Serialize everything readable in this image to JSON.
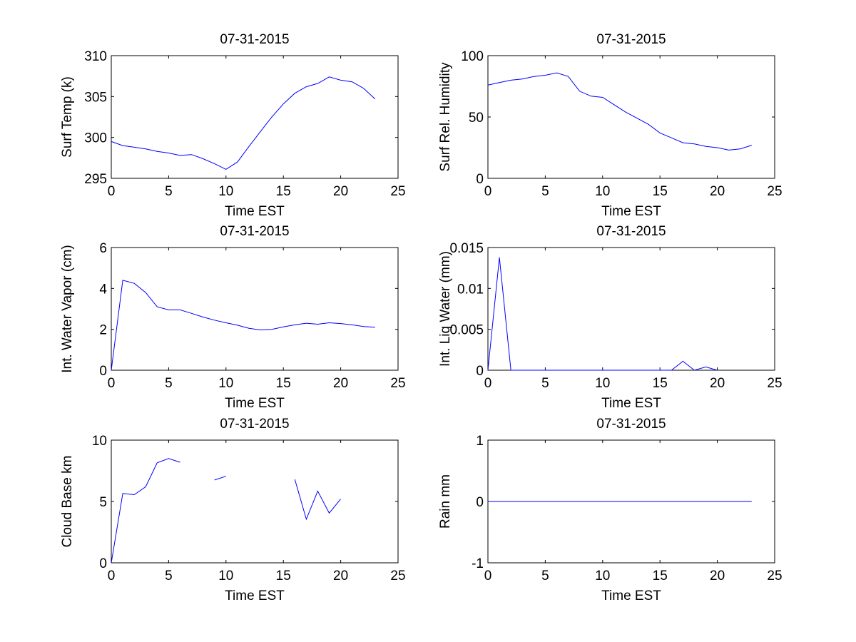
{
  "colors": {
    "line": "#0000ff",
    "axis": "#000000",
    "background": "#ffffff"
  },
  "chart_data": [
    {
      "type": "line",
      "title": "07-31-2015",
      "xlabel": "Time EST",
      "ylabel": "Surf Temp (k)",
      "xlim": [
        0,
        25
      ],
      "ylim": [
        295,
        310
      ],
      "xticks": [
        0,
        5,
        10,
        15,
        20,
        25
      ],
      "yticks": [
        295,
        300,
        305,
        310
      ],
      "yticklabels": [
        "295",
        "300",
        "305",
        "310"
      ],
      "x": [
        0,
        1,
        2,
        3,
        4,
        5,
        6,
        7,
        8,
        9,
        10,
        11,
        12,
        13,
        14,
        15,
        16,
        17,
        18,
        19,
        20,
        21,
        22,
        23
      ],
      "series": [
        {
          "name": "Surf Temp",
          "values": [
            299.5,
            299.0,
            298.8,
            298.6,
            298.3,
            298.1,
            297.8,
            297.9,
            297.4,
            296.8,
            296.1,
            297.0,
            298.9,
            300.7,
            302.5,
            304.1,
            305.4,
            306.2,
            306.6,
            307.4,
            307.0,
            306.8,
            306.0,
            304.7
          ]
        }
      ]
    },
    {
      "type": "line",
      "title": "07-31-2015",
      "xlabel": "Time EST",
      "ylabel": "Surf Rel. Humidity",
      "xlim": [
        0,
        25
      ],
      "ylim": [
        0,
        100
      ],
      "xticks": [
        0,
        5,
        10,
        15,
        20,
        25
      ],
      "yticks": [
        0,
        50,
        100
      ],
      "yticklabels": [
        "0",
        "50",
        "100"
      ],
      "x": [
        0,
        1,
        2,
        3,
        4,
        5,
        6,
        7,
        8,
        9,
        10,
        11,
        12,
        13,
        14,
        15,
        16,
        17,
        18,
        19,
        20,
        21,
        22,
        23
      ],
      "series": [
        {
          "name": "Surf Rel. Humidity",
          "values": [
            76,
            78,
            80,
            81,
            83,
            84,
            86,
            83,
            71,
            67,
            66,
            60,
            54,
            49,
            44,
            37,
            33,
            29,
            28,
            26,
            25,
            23,
            24,
            27
          ]
        }
      ]
    },
    {
      "type": "line",
      "title": "07-31-2015",
      "xlabel": "Time EST",
      "ylabel": "Int. Water Vapor (cm)",
      "xlim": [
        0,
        25
      ],
      "ylim": [
        0,
        6
      ],
      "xticks": [
        0,
        5,
        10,
        15,
        20,
        25
      ],
      "yticks": [
        0,
        2,
        4,
        6
      ],
      "yticklabels": [
        "0",
        "2",
        "4",
        "6"
      ],
      "x": [
        0,
        1,
        2,
        3,
        4,
        5,
        6,
        7,
        8,
        9,
        10,
        11,
        12,
        13,
        14,
        15,
        16,
        17,
        18,
        19,
        20,
        21,
        22,
        23
      ],
      "series": [
        {
          "name": "Int. Water Vapor",
          "values": [
            0,
            4.4,
            4.25,
            3.8,
            3.1,
            2.95,
            2.95,
            2.78,
            2.6,
            2.45,
            2.32,
            2.2,
            2.05,
            1.97,
            2.0,
            2.12,
            2.22,
            2.3,
            2.25,
            2.32,
            2.28,
            2.22,
            2.14,
            2.1
          ]
        }
      ]
    },
    {
      "type": "line",
      "title": "07-31-2015",
      "xlabel": "Time EST",
      "ylabel": "Int. Liq Water (mm)",
      "xlim": [
        0,
        25
      ],
      "ylim": [
        0,
        0.015
      ],
      "xticks": [
        0,
        5,
        10,
        15,
        20,
        25
      ],
      "yticks": [
        0,
        0.005,
        0.01,
        0.015
      ],
      "yticklabels": [
        "0",
        "0.005",
        "0.01",
        "0.015"
      ],
      "x": [
        0,
        1,
        2,
        3,
        4,
        5,
        6,
        7,
        8,
        9,
        10,
        11,
        12,
        13,
        14,
        15,
        16,
        17,
        18,
        19,
        20
      ],
      "series": [
        {
          "name": "Int. Liq Water",
          "values": [
            0,
            0.0138,
            0,
            0,
            0,
            0,
            0,
            0,
            0,
            0,
            0,
            0,
            0,
            0,
            0,
            0,
            0,
            0.0011,
            0,
            0.0004,
            0
          ]
        }
      ]
    },
    {
      "type": "line",
      "title": "07-31-2015",
      "xlabel": "Time EST",
      "ylabel": "Cloud Base km",
      "xlim": [
        0,
        25
      ],
      "ylim": [
        0,
        10
      ],
      "xticks": [
        0,
        5,
        10,
        15,
        20,
        25
      ],
      "yticks": [
        0,
        5,
        10
      ],
      "yticklabels": [
        "0",
        "5",
        "10"
      ],
      "x": [
        0,
        1,
        2,
        3,
        4,
        5,
        6,
        7,
        8,
        9,
        10,
        11,
        12,
        13,
        14,
        15,
        16,
        17,
        18,
        19,
        20
      ],
      "series": [
        {
          "name": "Cloud Base",
          "values": [
            0,
            5.65,
            5.55,
            6.2,
            8.15,
            8.5,
            8.2,
            null,
            null,
            6.75,
            7.05,
            null,
            null,
            null,
            null,
            null,
            6.8,
            3.55,
            5.85,
            4.05,
            5.2
          ]
        }
      ]
    },
    {
      "type": "line",
      "title": "07-31-2015",
      "xlabel": "Time EST",
      "ylabel": "Rain mm",
      "xlim": [
        0,
        25
      ],
      "ylim": [
        -1,
        1
      ],
      "xticks": [
        0,
        5,
        10,
        15,
        20,
        25
      ],
      "yticks": [
        -1,
        0,
        1
      ],
      "yticklabels": [
        "-1",
        "0",
        "1"
      ],
      "x": [
        0,
        1,
        2,
        3,
        4,
        5,
        6,
        7,
        8,
        9,
        10,
        11,
        12,
        13,
        14,
        15,
        16,
        17,
        18,
        19,
        20,
        21,
        22,
        23
      ],
      "series": [
        {
          "name": "Rain",
          "values": [
            0,
            0,
            0,
            0,
            0,
            0,
            0,
            0,
            0,
            0,
            0,
            0,
            0,
            0,
            0,
            0,
            0,
            0,
            0,
            0,
            0,
            0,
            0,
            0
          ]
        }
      ]
    }
  ]
}
